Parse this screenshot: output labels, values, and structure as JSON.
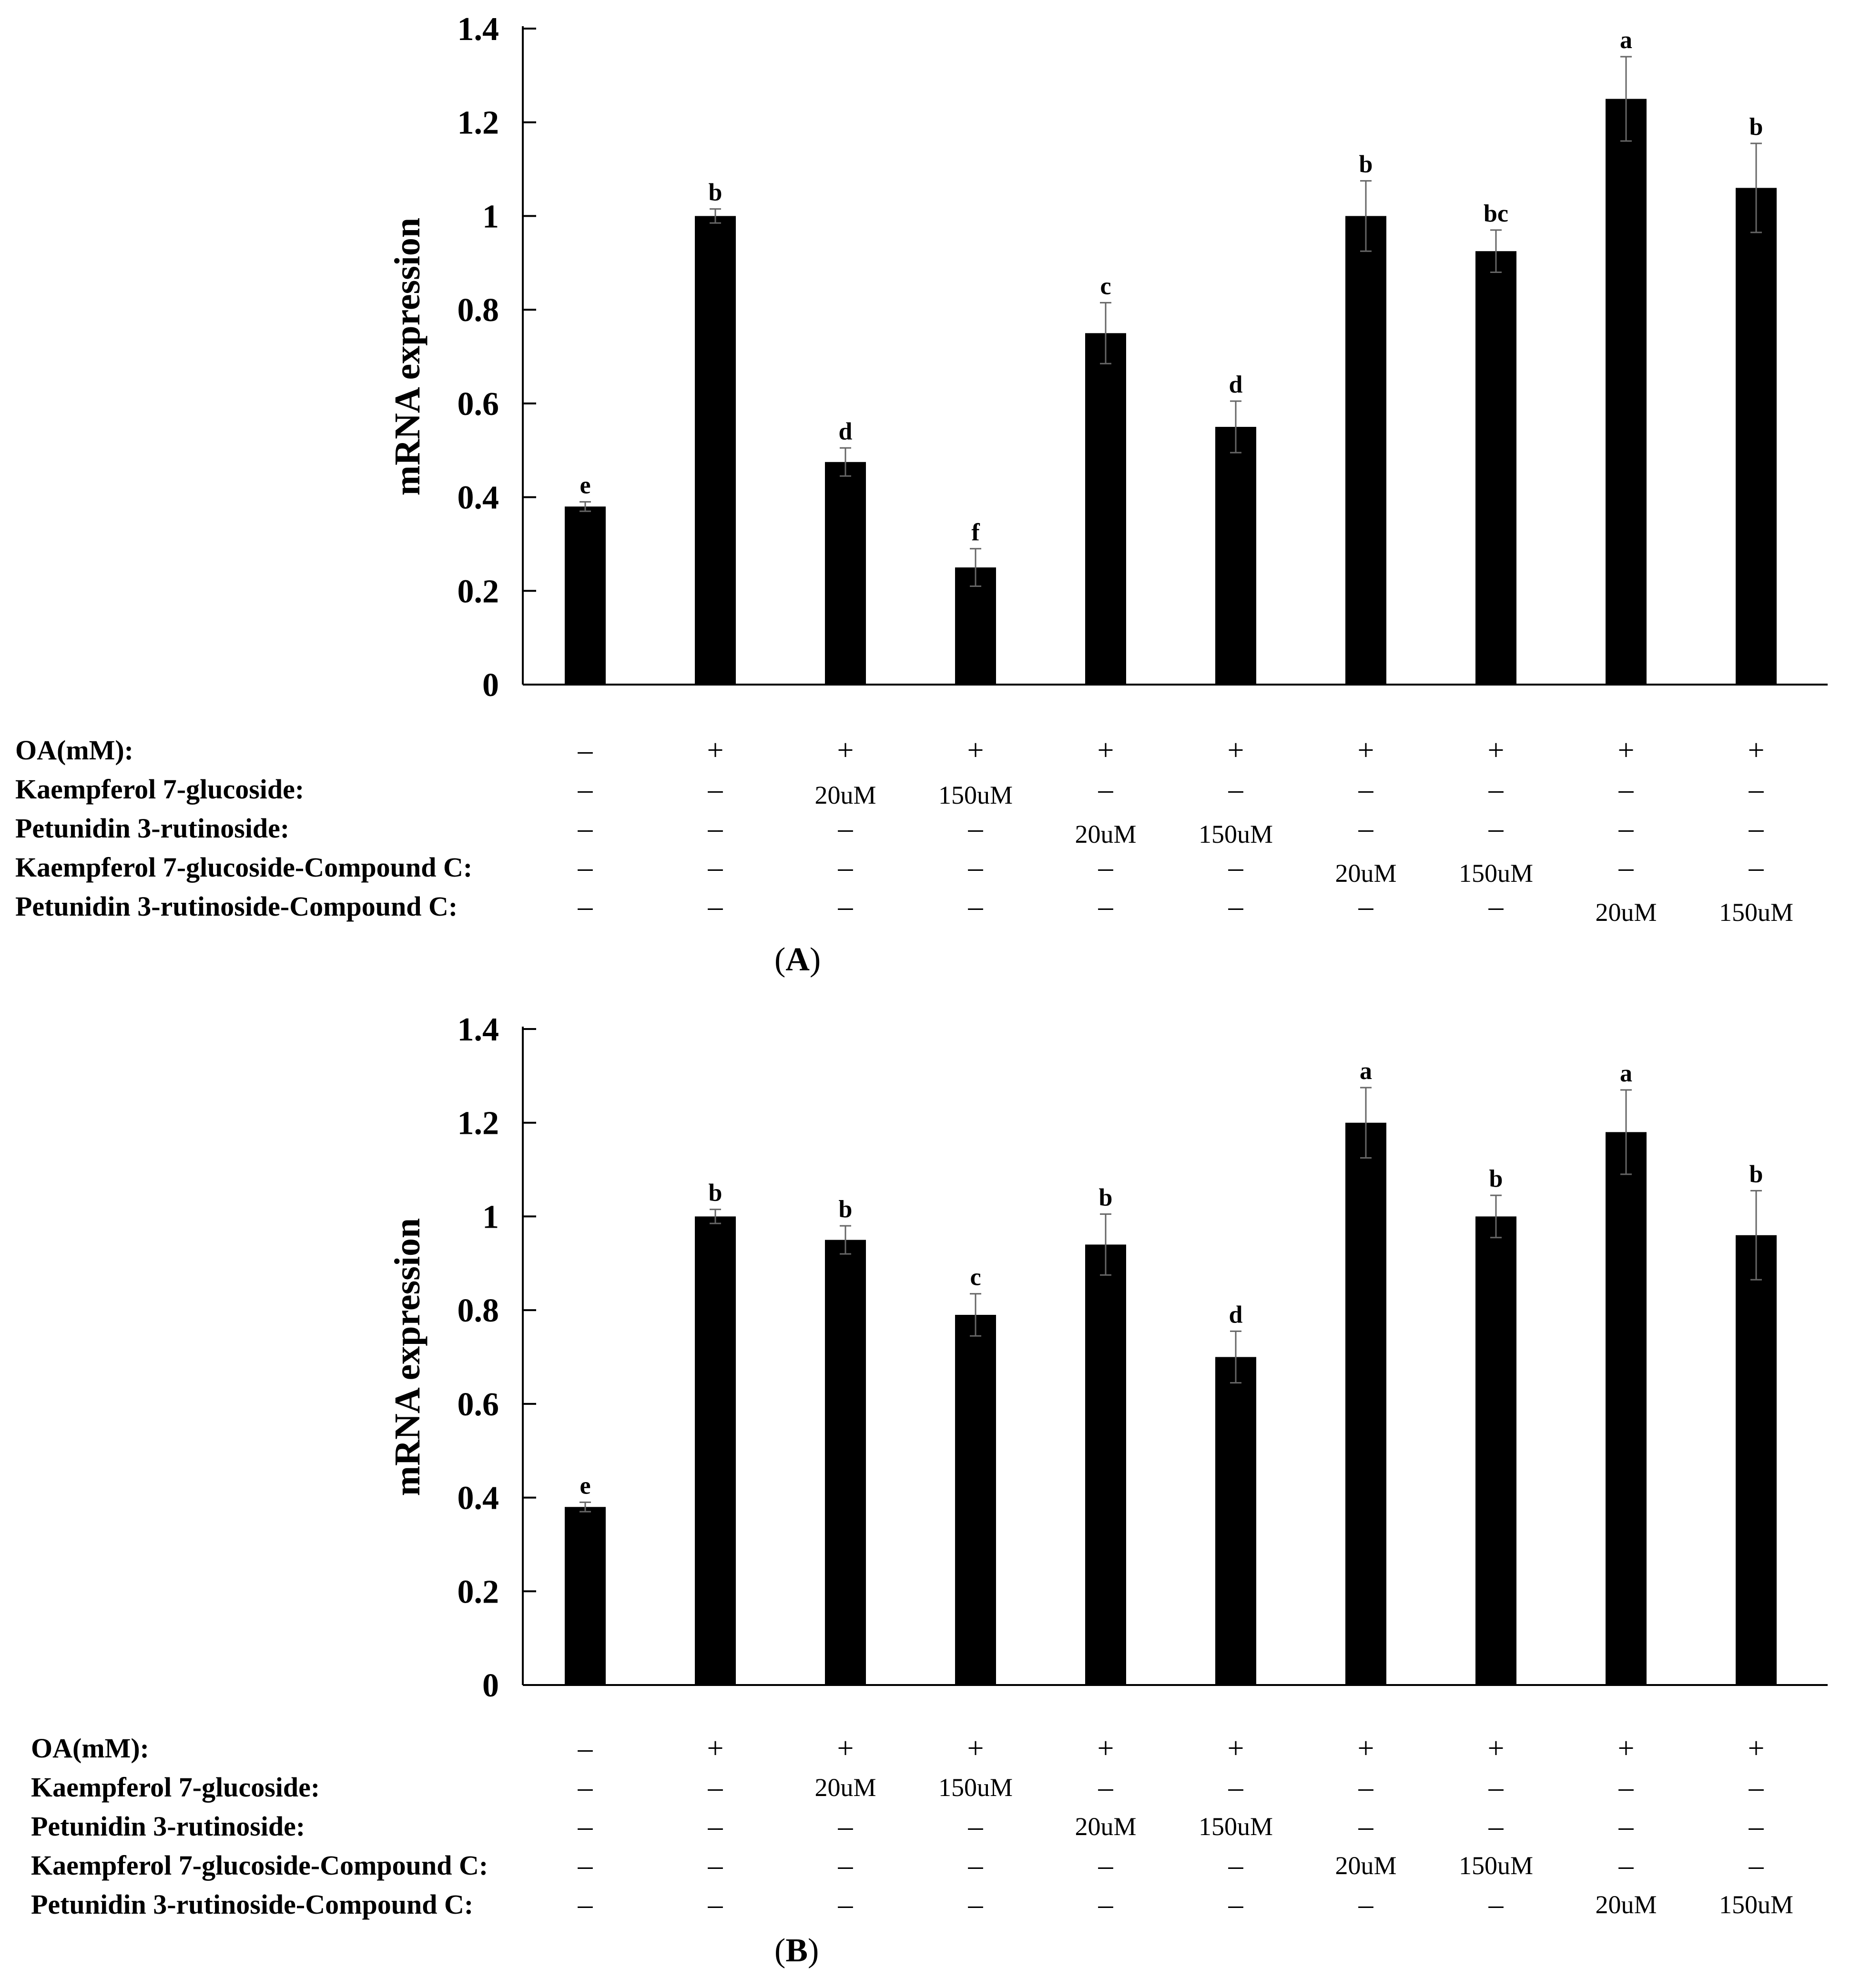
{
  "chart_data": [
    {
      "type": "bar",
      "panel": "A",
      "ylabel": "mRNA expression",
      "ylim": [
        0,
        1.4
      ],
      "yticks": [
        "0",
        "0.2",
        "0.4",
        "0.6",
        "0.8",
        "1",
        "1.2",
        "1.4"
      ],
      "grid": false,
      "series": [
        {
          "name": "mRNA expression",
          "values": [
            0.38,
            1.0,
            0.475,
            0.25,
            0.75,
            0.55,
            1.0,
            0.925,
            1.25,
            1.06
          ],
          "errors": [
            0.01,
            0.015,
            0.03,
            0.04,
            0.065,
            0.055,
            0.075,
            0.045,
            0.09,
            0.095
          ],
          "labels": [
            "e",
            "b",
            "d",
            "f",
            "c",
            "d",
            "b",
            "bc",
            "a",
            "b"
          ]
        }
      ],
      "treatments": [
        {
          "label": "OA(mM):",
          "cells": [
            "–",
            "+",
            "+",
            "+",
            "+",
            "+",
            "+",
            "+",
            "+",
            "+"
          ]
        },
        {
          "label": "Kaempferol 7-glucoside:",
          "cells": [
            "–",
            "–",
            "20uM",
            "150uM",
            "–",
            "–",
            "–",
            "–",
            "–",
            "–"
          ]
        },
        {
          "label": "Petunidin 3-rutinoside:",
          "cells": [
            "–",
            "–",
            "–",
            "–",
            "20uM",
            "150uM",
            "–",
            "–",
            "–",
            "–"
          ]
        },
        {
          "label": "Kaempferol 7-glucoside-Compound C:",
          "cells": [
            "–",
            "–",
            "–",
            "–",
            "–",
            "–",
            "20uM",
            "150uM",
            "–",
            "–"
          ]
        },
        {
          "label": "Petunidin 3-rutinoside-Compound C:",
          "cells": [
            "–",
            "–",
            "–",
            "–",
            "–",
            "–",
            "–",
            "–",
            "20uM",
            "150uM"
          ]
        }
      ],
      "caption": "A"
    },
    {
      "type": "bar",
      "panel": "B",
      "ylabel": "mRNA expression",
      "ylim": [
        0,
        1.4
      ],
      "yticks": [
        "0",
        "0.2",
        "0.4",
        "0.6",
        "0.8",
        "1",
        "1.2",
        "1.4"
      ],
      "grid": false,
      "series": [
        {
          "name": "mRNA expression",
          "values": [
            0.38,
            1.0,
            0.95,
            0.79,
            0.94,
            0.7,
            1.2,
            1.0,
            1.18,
            0.96
          ],
          "errors": [
            0.01,
            0.015,
            0.03,
            0.045,
            0.065,
            0.055,
            0.075,
            0.045,
            0.09,
            0.095
          ],
          "labels": [
            "e",
            "b",
            "b",
            "c",
            "b",
            "d",
            "a",
            "b",
            "a",
            "b"
          ]
        }
      ],
      "treatments": [
        {
          "label": "OA(mM):",
          "cells": [
            "–",
            "+",
            "+",
            "+",
            "+",
            "+",
            "+",
            "+",
            "+",
            "+"
          ]
        },
        {
          "label": "Kaempferol 7-glucoside:",
          "cells": [
            "–",
            "–",
            "20uM",
            "150uM",
            "–",
            "–",
            "–",
            "–",
            "–",
            "–"
          ]
        },
        {
          "label": "Petunidin 3-rutinoside:",
          "cells": [
            "–",
            "–",
            "–",
            "–",
            "20uM",
            "150uM",
            "–",
            "–",
            "–",
            "–"
          ]
        },
        {
          "label": "Kaempferol 7-glucoside-Compound C:",
          "cells": [
            "–",
            "–",
            "–",
            "–",
            "–",
            "–",
            "20uM",
            "150uM",
            "–",
            "–"
          ]
        },
        {
          "label": "Petunidin 3-rutinoside-Compound C:",
          "cells": [
            "–",
            "–",
            "–",
            "–",
            "–",
            "–",
            "–",
            "–",
            "20uM",
            "150uM"
          ]
        }
      ],
      "caption": "B"
    }
  ]
}
